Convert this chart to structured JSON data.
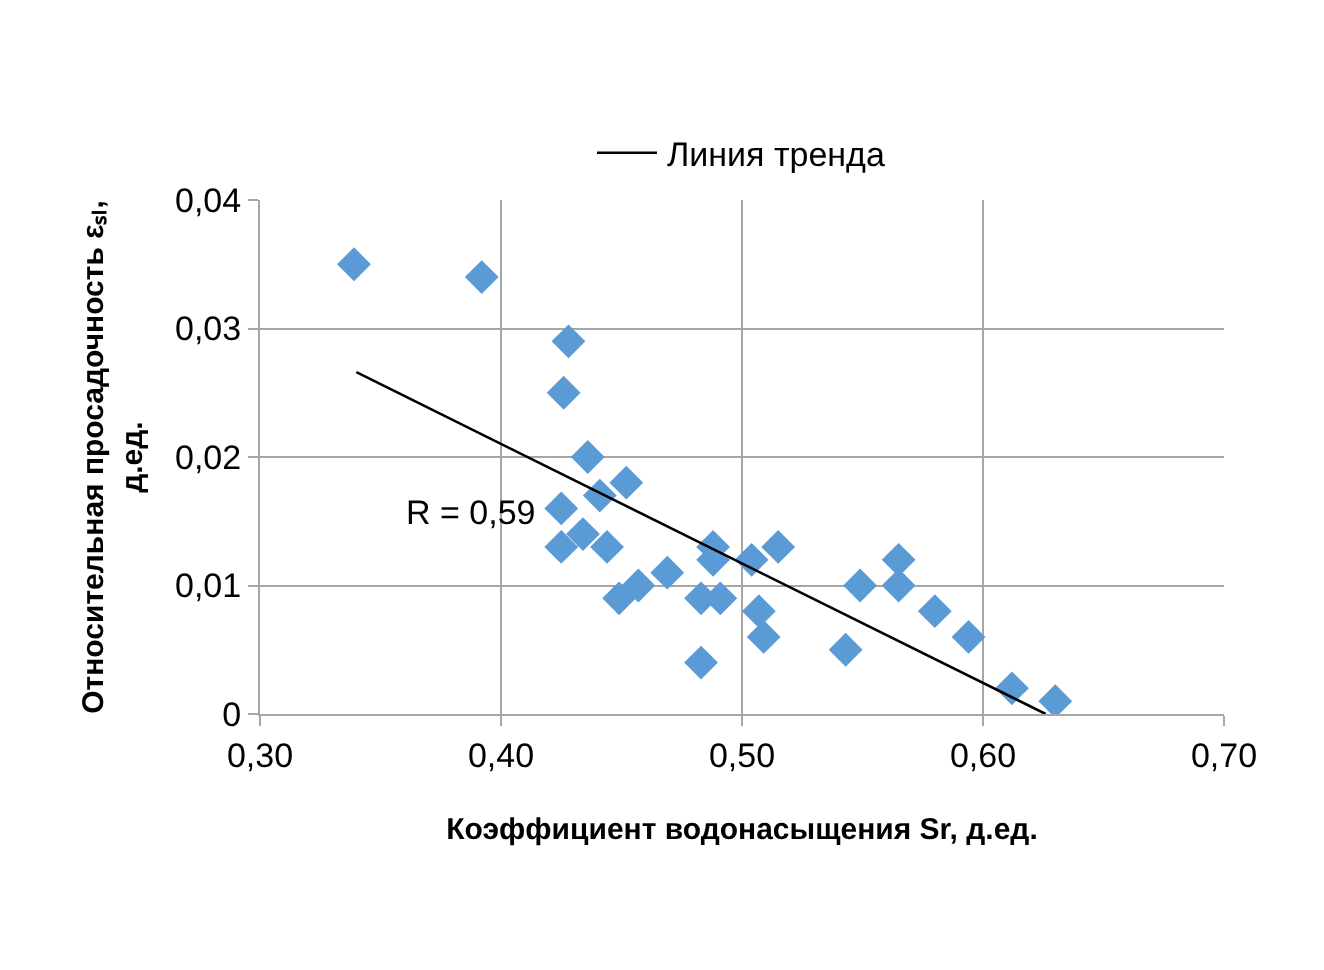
{
  "chart_data": {
    "type": "scatter",
    "xlabel": "Коэффициент водонасыщения Sr, д.ед.",
    "ylabel": "Относительная просадочность εₛₗ,\nд.ед.",
    "series": [
      {
        "color": "#5b9bd5",
        "marker": "diamond",
        "x": [
          0.339,
          0.392,
          0.428,
          0.426,
          0.436,
          0.452,
          0.441,
          0.425,
          0.425,
          0.434,
          0.444,
          0.449,
          0.457,
          0.469,
          0.483,
          0.483,
          0.491,
          0.488,
          0.488,
          0.504,
          0.515,
          0.507,
          0.509,
          0.549,
          0.565,
          0.565,
          0.58,
          0.594,
          0.543,
          0.612,
          0.63
        ],
        "values": [
          0.035,
          0.034,
          0.029,
          0.025,
          0.02,
          0.018,
          0.017,
          0.016,
          0.013,
          0.014,
          0.013,
          0.009,
          0.01,
          0.011,
          0.004,
          0.009,
          0.009,
          0.012,
          0.013,
          0.012,
          0.013,
          0.008,
          0.006,
          0.01,
          0.012,
          0.01,
          0.008,
          0.006,
          0.005,
          0.002,
          0.001
        ]
      },
      {
        "type": "line",
        "name": "Линия тренда",
        "color": "#000000",
        "line_style": "solid",
        "marker": "none",
        "x": [
          0.34,
          0.626
        ],
        "values": [
          0.0266,
          0
        ]
      }
    ],
    "xlim": [
      0.3,
      0.7
    ],
    "xticks": [
      {
        "value": 0.3,
        "label": "0,30"
      },
      {
        "value": 0.4,
        "label": "0,40"
      },
      {
        "value": 0.5,
        "label": "0,50"
      },
      {
        "value": 0.6,
        "label": "0,60"
      },
      {
        "value": 0.7,
        "label": "0,70"
      }
    ],
    "ylim": [
      0,
      0.04
    ],
    "yticks": [
      0,
      {
        "value": 0.01,
        "label": "0,01"
      },
      {
        "value": 0.02,
        "label": "0,02"
      },
      {
        "value": 0.03,
        "label": "0,03"
      },
      {
        "value": 0.04,
        "label": "0,04"
      }
    ],
    "grid": true,
    "legend": "top",
    "annotations": [
      "R = 0,59"
    ]
  }
}
